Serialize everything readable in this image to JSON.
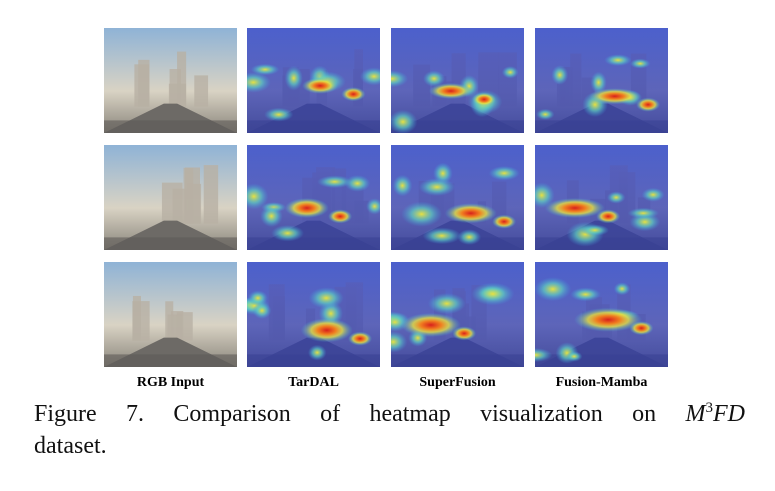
{
  "figure": {
    "columns": [
      "RGB Input",
      "TarDAL",
      "SuperFusion",
      "Fusion-Mamba"
    ],
    "caption": {
      "label": "Figure 7.",
      "text": "Comparison of heatmap visualization on",
      "math_base": "M",
      "math_sup": "3",
      "math_rest": "FD",
      "tail": "dataset."
    }
  }
}
